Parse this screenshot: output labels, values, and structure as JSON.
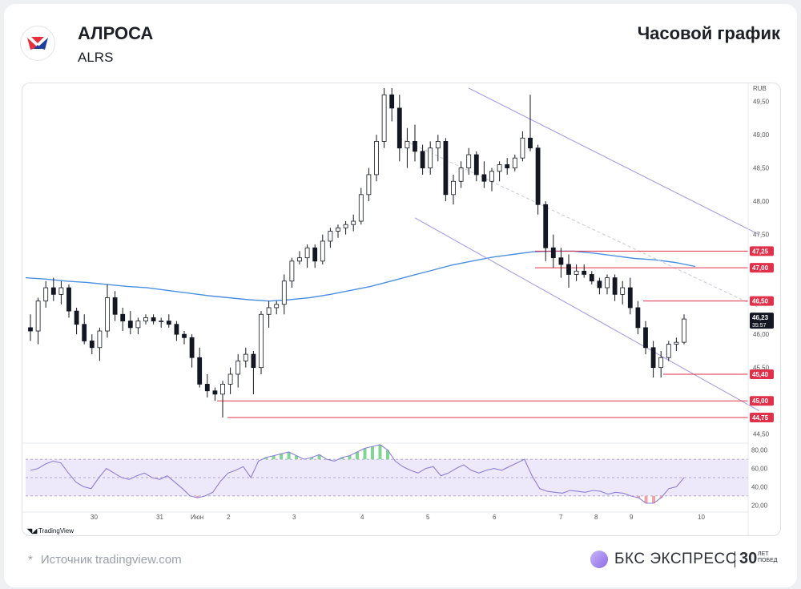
{
  "header": {
    "ticker_name": "АЛРОСА",
    "ticker_code": "ALRS",
    "chart_kind": "Часовой график"
  },
  "footer": {
    "source_star": "*",
    "source": "Источник tradingview.com",
    "brand": "БКС ЭКСПРЕСС",
    "brand_years": "30",
    "brand_years_caption_1": "ЛЕТ",
    "brand_years_caption_2": "ПОБЕД"
  },
  "watermark": "TradingView",
  "colors": {
    "up_candle": "#ffffff",
    "down_candle": "#131722",
    "moving_average": "#4a90e2",
    "channel": "#a89ee6",
    "level": "#e0304a",
    "rsi": "#8c7fd6",
    "rsi_band": "#ede9fb",
    "rsi_overbought": "#7fd693",
    "rsi_oversold": "#f3a3a7",
    "brand_logo": "#9b7df0"
  },
  "chart_data": {
    "type": "candlestick",
    "currency": "RUB",
    "x_ticks": [
      "30",
      "31",
      "Июн",
      "2",
      "3",
      "4",
      "5",
      "6",
      "7",
      "8",
      "9",
      "10"
    ],
    "y_ticks": [
      "49,50",
      "49,00",
      "48,50",
      "48,00",
      "47,50",
      "46,00",
      "45,50",
      "44,50"
    ],
    "ylim": [
      44.4,
      49.7
    ],
    "current_price": "46,23",
    "countdown": "35:57",
    "levels": [
      {
        "label": "47,25",
        "value": 47.25
      },
      {
        "label": "47,00",
        "value": 47.0
      },
      {
        "label": "46,50",
        "value": 46.5
      },
      {
        "label": "45,40",
        "value": 45.4
      },
      {
        "label": "45,00",
        "value": 45.0
      },
      {
        "label": "44,75",
        "value": 44.75
      }
    ],
    "candles": [
      [
        46.1,
        46.3,
        45.9,
        46.05
      ],
      [
        46.05,
        46.55,
        45.85,
        46.5
      ],
      [
        46.5,
        46.8,
        46.4,
        46.7
      ],
      [
        46.7,
        46.85,
        46.5,
        46.6
      ],
      [
        46.6,
        46.8,
        46.45,
        46.7
      ],
      [
        46.7,
        46.75,
        46.25,
        46.35
      ],
      [
        46.35,
        46.4,
        46.0,
        46.15
      ],
      [
        46.15,
        46.3,
        45.85,
        45.9
      ],
      [
        45.9,
        46.0,
        45.7,
        45.8
      ],
      [
        45.8,
        46.1,
        45.6,
        46.05
      ],
      [
        46.05,
        46.75,
        45.95,
        46.55
      ],
      [
        46.55,
        46.65,
        46.2,
        46.3
      ],
      [
        46.3,
        46.4,
        46.05,
        46.2
      ],
      [
        46.2,
        46.35,
        46.0,
        46.1
      ],
      [
        46.1,
        46.25,
        46.0,
        46.2
      ],
      [
        46.2,
        46.3,
        46.15,
        46.25
      ],
      [
        46.25,
        46.3,
        46.15,
        46.2
      ],
      [
        46.2,
        46.25,
        46.1,
        46.2
      ],
      [
        46.2,
        46.3,
        46.1,
        46.15
      ],
      [
        46.15,
        46.2,
        45.9,
        46.0
      ],
      [
        46.0,
        46.05,
        45.85,
        45.95
      ],
      [
        45.95,
        46.0,
        45.5,
        45.65
      ],
      [
        45.65,
        45.8,
        45.2,
        45.25
      ],
      [
        45.25,
        45.4,
        45.05,
        45.15
      ],
      [
        45.15,
        45.2,
        45.0,
        45.1
      ],
      [
        45.1,
        45.3,
        44.75,
        45.25
      ],
      [
        45.25,
        45.5,
        45.1,
        45.4
      ],
      [
        45.4,
        45.7,
        45.2,
        45.6
      ],
      [
        45.6,
        45.8,
        45.5,
        45.7
      ],
      [
        45.7,
        45.75,
        45.1,
        45.5
      ],
      [
        45.5,
        46.35,
        45.4,
        46.3
      ],
      [
        46.3,
        46.5,
        46.1,
        46.4
      ],
      [
        46.4,
        46.5,
        46.3,
        46.45
      ],
      [
        46.45,
        46.9,
        46.3,
        46.8
      ],
      [
        46.8,
        47.15,
        46.7,
        47.1
      ],
      [
        47.1,
        47.25,
        47.05,
        47.15
      ],
      [
        47.15,
        47.35,
        47.0,
        47.3
      ],
      [
        47.3,
        47.35,
        47.0,
        47.1
      ],
      [
        47.1,
        47.5,
        47.05,
        47.4
      ],
      [
        47.4,
        47.6,
        47.3,
        47.55
      ],
      [
        47.55,
        47.65,
        47.45,
        47.6
      ],
      [
        47.6,
        47.7,
        47.5,
        47.65
      ],
      [
        47.65,
        47.8,
        47.55,
        47.7
      ],
      [
        47.7,
        48.2,
        47.65,
        48.1
      ],
      [
        48.1,
        48.5,
        48.0,
        48.4
      ],
      [
        48.4,
        49.0,
        48.3,
        48.9
      ],
      [
        48.9,
        49.7,
        48.8,
        49.6
      ],
      [
        49.6,
        49.7,
        49.2,
        49.4
      ],
      [
        49.4,
        49.6,
        48.6,
        48.8
      ],
      [
        48.8,
        49.1,
        48.5,
        48.9
      ],
      [
        48.9,
        49.15,
        48.6,
        48.75
      ],
      [
        48.75,
        48.85,
        48.4,
        48.5
      ],
      [
        48.5,
        48.9,
        48.4,
        48.8
      ],
      [
        48.8,
        49.0,
        48.6,
        48.9
      ],
      [
        48.9,
        48.95,
        48.0,
        48.1
      ],
      [
        48.1,
        48.4,
        47.95,
        48.3
      ],
      [
        48.3,
        48.6,
        48.2,
        48.5
      ],
      [
        48.5,
        48.8,
        48.4,
        48.7
      ],
      [
        48.7,
        48.75,
        48.3,
        48.4
      ],
      [
        48.4,
        48.6,
        48.2,
        48.3
      ],
      [
        48.3,
        48.5,
        48.15,
        48.45
      ],
      [
        48.45,
        48.6,
        48.3,
        48.55
      ],
      [
        48.55,
        48.65,
        48.4,
        48.5
      ],
      [
        48.5,
        48.7,
        48.45,
        48.65
      ],
      [
        48.65,
        49.05,
        48.6,
        48.95
      ],
      [
        48.95,
        49.6,
        48.75,
        48.8
      ],
      [
        48.8,
        48.85,
        47.8,
        47.95
      ],
      [
        47.95,
        48.0,
        47.1,
        47.3
      ],
      [
        47.3,
        47.5,
        47.0,
        47.15
      ],
      [
        47.15,
        47.3,
        46.85,
        47.05
      ],
      [
        47.05,
        47.2,
        46.7,
        46.9
      ],
      [
        46.9,
        47.05,
        46.8,
        46.95
      ],
      [
        46.95,
        47.05,
        46.85,
        46.9
      ],
      [
        46.9,
        46.95,
        46.75,
        46.8
      ],
      [
        46.8,
        46.85,
        46.6,
        46.7
      ],
      [
        46.7,
        46.9,
        46.6,
        46.85
      ],
      [
        46.85,
        46.9,
        46.5,
        46.6
      ],
      [
        46.6,
        46.8,
        46.45,
        46.7
      ],
      [
        46.7,
        46.85,
        46.3,
        46.4
      ],
      [
        46.4,
        46.5,
        46.0,
        46.1
      ],
      [
        46.1,
        46.2,
        45.7,
        45.8
      ],
      [
        45.8,
        45.9,
        45.35,
        45.5
      ],
      [
        45.5,
        45.75,
        45.35,
        45.65
      ],
      [
        45.65,
        45.9,
        45.6,
        45.85
      ],
      [
        45.85,
        45.95,
        45.75,
        45.88
      ],
      [
        45.88,
        46.3,
        45.85,
        46.23
      ]
    ],
    "moving_average": [
      46.85,
      46.83,
      46.8,
      46.78,
      46.75,
      46.72,
      46.7,
      46.66,
      46.62,
      46.58,
      46.55,
      46.52,
      46.5,
      46.52,
      46.55,
      46.6,
      46.66,
      46.72,
      46.8,
      46.88,
      46.96,
      47.04,
      47.1,
      47.16,
      47.2,
      47.24,
      47.25,
      47.25,
      47.22,
      47.18,
      47.14,
      47.12,
      47.08,
      47.02
    ],
    "channel_upper": [
      [
        57,
        49.7
      ],
      [
        101,
        47.5
      ]
    ],
    "channel_lower": [
      [
        50,
        47.75
      ],
      [
        101,
        44.85
      ]
    ],
    "channel_mid": [
      [
        48,
        48.95
      ],
      [
        101,
        46.4
      ]
    ],
    "rsi": {
      "ylim": [
        15,
        85
      ],
      "y_ticks": [
        "80,00",
        "60,00",
        "40,00",
        "20,00"
      ],
      "band": [
        30,
        70
      ],
      "values": [
        58,
        60,
        65,
        68,
        66,
        55,
        45,
        40,
        38,
        50,
        60,
        55,
        50,
        48,
        52,
        55,
        50,
        48,
        52,
        45,
        38,
        30,
        28,
        30,
        34,
        46,
        55,
        58,
        62,
        50,
        68,
        72,
        74,
        76,
        78,
        74,
        70,
        72,
        75,
        70,
        68,
        72,
        74,
        78,
        82,
        84,
        86,
        80,
        68,
        62,
        58,
        55,
        60,
        62,
        52,
        55,
        60,
        64,
        58,
        55,
        58,
        60,
        58,
        62,
        66,
        70,
        52,
        38,
        35,
        34,
        33,
        36,
        35,
        34,
        36,
        35,
        32,
        34,
        33,
        30,
        28,
        22,
        22,
        28,
        38,
        40,
        50
      ]
    }
  }
}
